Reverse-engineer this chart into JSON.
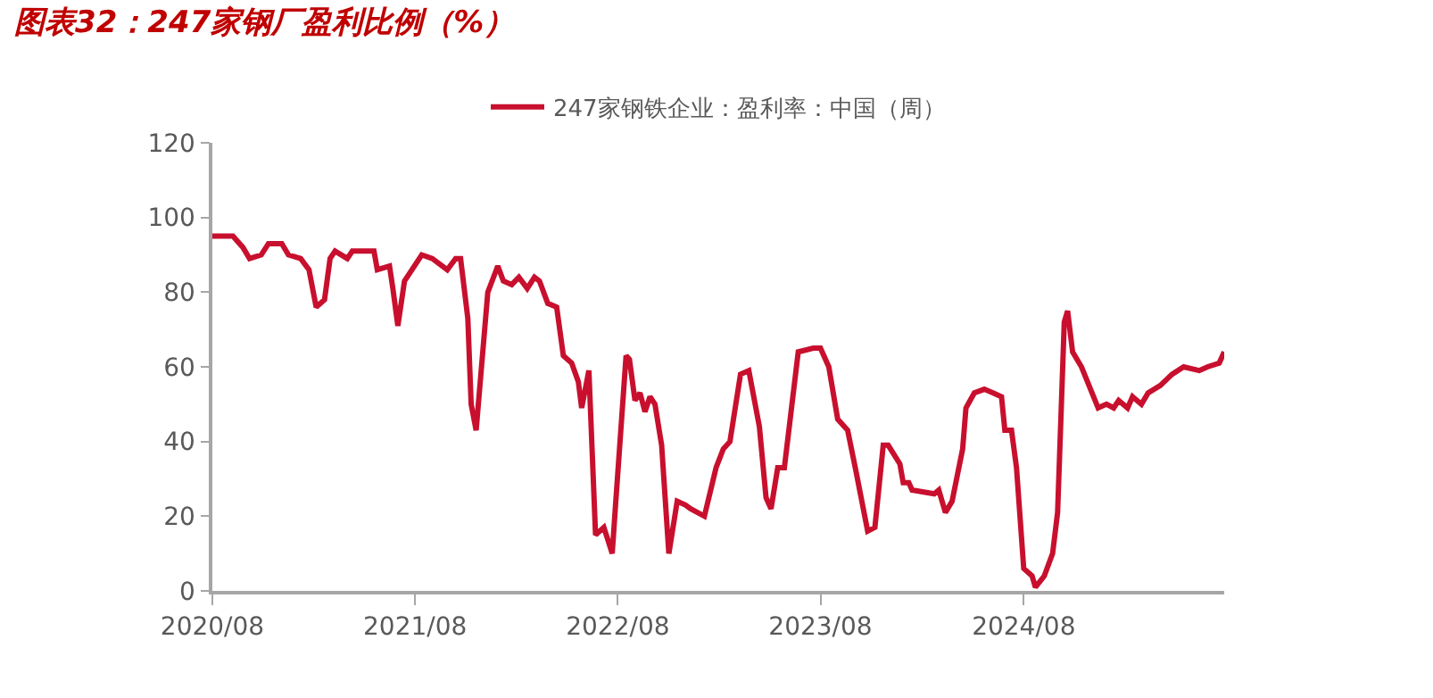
{
  "chart_data": {
    "type": "line",
    "title": "图表32：247家钢厂盈利比例（%）",
    "legend": "top",
    "marker": "none",
    "line_style": "solid",
    "xlim": [
      "2020-08-01",
      "2025-07-28"
    ],
    "xticks": [
      {
        "value": "2020-08-01",
        "label": "2020/08"
      },
      {
        "value": "2021-08-01",
        "label": "2021/08"
      },
      {
        "value": "2022-08-01",
        "label": "2022/08"
      },
      {
        "value": "2023-08-01",
        "label": "2023/08"
      },
      {
        "value": "2024-08-01",
        "label": "2024/08"
      }
    ],
    "ylim": [
      0,
      120
    ],
    "yticks": [
      0,
      20,
      40,
      60,
      80,
      100,
      120
    ],
    "x": [
      "2020-08-01",
      "2020-09-07",
      "2020-09-25",
      "2020-10-07",
      "2020-10-28",
      "2020-11-10",
      "2020-12-04",
      "2020-12-16",
      "2021-01-07",
      "2021-01-22",
      "2021-02-04",
      "2021-02-19",
      "2021-03-01",
      "2021-03-10",
      "2021-04-01",
      "2021-04-10",
      "2021-05-19",
      "2021-05-25",
      "2021-06-16",
      "2021-06-22",
      "2021-07-01",
      "2021-07-13",
      "2021-08-13",
      "2021-09-01",
      "2021-09-10",
      "2021-09-28",
      "2021-10-13",
      "2021-10-22",
      "2021-11-04",
      "2021-11-10",
      "2021-11-19",
      "2021-12-10",
      "2021-12-28",
      "2022-01-07",
      "2022-01-22",
      "2022-02-04",
      "2022-02-19",
      "2022-03-04",
      "2022-03-13",
      "2022-03-28",
      "2022-04-13",
      "2022-04-25",
      "2022-05-10",
      "2022-05-22",
      "2022-05-28",
      "2022-06-10",
      "2022-06-22",
      "2022-07-07",
      "2022-07-22",
      "2022-07-28",
      "2022-08-16",
      "2022-08-22",
      "2022-09-01",
      "2022-09-10",
      "2022-09-19",
      "2022-09-28",
      "2022-10-07",
      "2022-10-19",
      "2022-11-01",
      "2022-11-16",
      "2022-12-01",
      "2022-12-10",
      "2023-01-04",
      "2023-01-25",
      "2023-02-07",
      "2023-02-19",
      "2023-03-10",
      "2023-03-25",
      "2023-04-13",
      "2023-04-25",
      "2023-05-04",
      "2023-05-16",
      "2023-05-28",
      "2023-06-22",
      "2023-07-19",
      "2023-08-01",
      "2023-08-16",
      "2023-09-01",
      "2023-09-19",
      "2023-10-04",
      "2023-10-25",
      "2023-11-07",
      "2023-11-22",
      "2023-12-01",
      "2023-12-22",
      "2023-12-28",
      "2024-01-07",
      "2024-01-13",
      "2024-02-22",
      "2024-03-01",
      "2024-03-13",
      "2024-03-25",
      "2024-04-13",
      "2024-04-19",
      "2024-05-04",
      "2024-05-22",
      "2024-06-07",
      "2024-06-22",
      "2024-06-28",
      "2024-07-10",
      "2024-07-19",
      "2024-08-01",
      "2024-08-16",
      "2024-08-22",
      "2024-09-07",
      "2024-09-22",
      "2024-10-01",
      "2024-10-13",
      "2024-10-19",
      "2024-10-28",
      "2024-11-13",
      "2024-12-13",
      "2024-12-28",
      "2025-01-10",
      "2025-01-19",
      "2025-02-04",
      "2025-02-13",
      "2025-03-01",
      "2025-03-13",
      "2025-04-04",
      "2025-04-25",
      "2025-05-16",
      "2025-06-13",
      "2025-06-28",
      "2025-07-19",
      "2025-07-28"
    ],
    "series": [
      {
        "name": "247家钢铁企业：盈利率：中国（周）",
        "color": "#c8102e",
        "values": [
          95,
          95,
          92,
          89,
          90,
          93,
          93,
          90,
          89,
          86,
          76,
          78,
          89,
          91,
          89,
          91,
          91,
          86,
          87,
          81,
          71,
          83,
          90,
          89,
          88,
          86,
          89,
          89,
          73,
          50,
          43,
          80,
          87,
          83,
          82,
          84,
          81,
          84,
          83,
          77,
          76,
          63,
          61,
          56,
          49,
          59,
          15,
          17,
          10,
          23,
          63,
          62,
          51,
          53,
          48,
          52,
          50,
          39,
          10,
          24,
          23,
          22,
          20,
          33,
          38,
          40,
          58,
          59,
          44,
          25,
          22,
          33,
          33,
          64,
          65,
          65,
          60,
          46,
          43,
          32,
          16,
          17,
          39,
          39,
          34,
          29,
          29,
          27,
          26,
          27,
          21,
          24,
          38,
          49,
          53,
          54,
          53,
          52,
          43,
          43,
          33,
          6,
          4,
          1,
          4,
          10,
          21,
          72,
          75,
          64,
          60,
          49,
          50,
          49,
          51,
          49,
          52,
          50,
          53,
          55,
          58,
          60,
          59,
          60,
          61,
          64
        ]
      }
    ]
  }
}
